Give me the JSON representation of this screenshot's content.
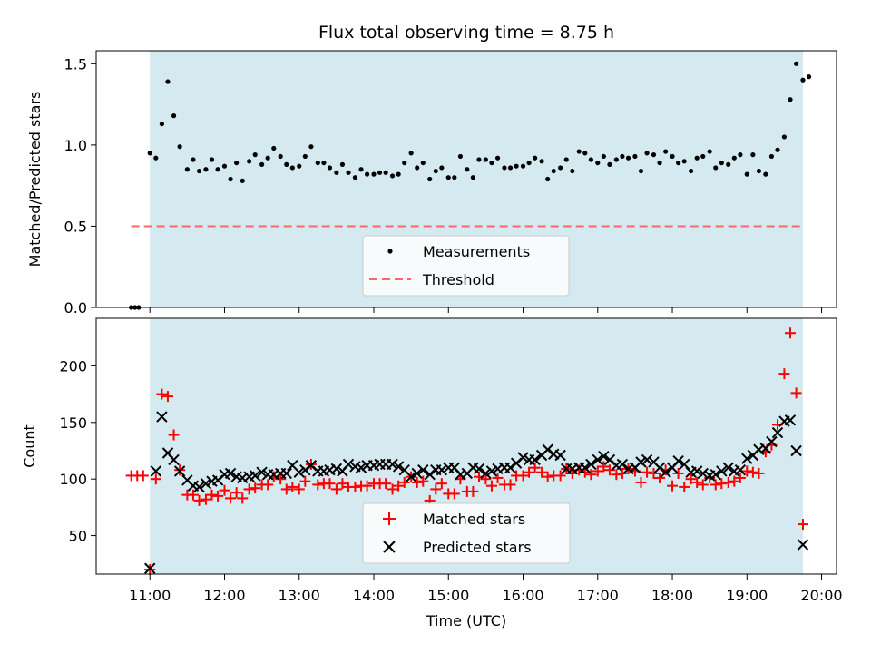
{
  "title": "Flux total observing time = 8.75 h",
  "top": {
    "ylabel": "Matched/Predicted stars",
    "ylim": [
      0,
      1.58
    ],
    "yticks": [
      0.0,
      0.5,
      1.0,
      1.5
    ],
    "ytick_labels": [
      "0.0",
      "0.5",
      "1.0",
      "1.5"
    ],
    "threshold": 0.5,
    "threshold_range": [
      10.75,
      19.75
    ],
    "legend": {
      "measurements": "Measurements",
      "threshold": "Threshold"
    },
    "measurements": [
      [
        10.75,
        0
      ],
      [
        10.8,
        0
      ],
      [
        10.85,
        0
      ],
      [
        11,
        0.95
      ],
      [
        11.08,
        0.92
      ],
      [
        11.16,
        1.13
      ],
      [
        11.24,
        1.39
      ],
      [
        11.32,
        1.18
      ],
      [
        11.4,
        0.99
      ],
      [
        11.5,
        0.85
      ],
      [
        11.58,
        0.91
      ],
      [
        11.66,
        0.84
      ],
      [
        11.75,
        0.85
      ],
      [
        11.83,
        0.91
      ],
      [
        11.91,
        0.85
      ],
      [
        12,
        0.87
      ],
      [
        12.08,
        0.79
      ],
      [
        12.16,
        0.89
      ],
      [
        12.24,
        0.78
      ],
      [
        12.33,
        0.9
      ],
      [
        12.41,
        0.94
      ],
      [
        12.5,
        0.88
      ],
      [
        12.58,
        0.92
      ],
      [
        12.66,
        0.98
      ],
      [
        12.75,
        0.93
      ],
      [
        12.83,
        0.88
      ],
      [
        12.91,
        0.86
      ],
      [
        13,
        0.87
      ],
      [
        13.08,
        0.93
      ],
      [
        13.16,
        0.99
      ],
      [
        13.25,
        0.89
      ],
      [
        13.33,
        0.89
      ],
      [
        13.41,
        0.86
      ],
      [
        13.5,
        0.83
      ],
      [
        13.58,
        0.88
      ],
      [
        13.66,
        0.83
      ],
      [
        13.75,
        0.8
      ],
      [
        13.83,
        0.85
      ],
      [
        13.91,
        0.82
      ],
      [
        14,
        0.82
      ],
      [
        14.08,
        0.83
      ],
      [
        14.16,
        0.83
      ],
      [
        14.25,
        0.81
      ],
      [
        14.33,
        0.82
      ],
      [
        14.41,
        0.89
      ],
      [
        14.5,
        0.95
      ],
      [
        14.58,
        0.86
      ],
      [
        14.66,
        0.89
      ],
      [
        14.75,
        0.79
      ],
      [
        14.83,
        0.84
      ],
      [
        14.91,
        0.86
      ],
      [
        15,
        0.8
      ],
      [
        15.08,
        0.8
      ],
      [
        15.16,
        0.93
      ],
      [
        15.25,
        0.85
      ],
      [
        15.33,
        0.8
      ],
      [
        15.41,
        0.91
      ],
      [
        15.5,
        0.91
      ],
      [
        15.58,
        0.89
      ],
      [
        15.66,
        0.92
      ],
      [
        15.75,
        0.86
      ],
      [
        15.83,
        0.86
      ],
      [
        15.91,
        0.87
      ],
      [
        16,
        0.87
      ],
      [
        16.08,
        0.89
      ],
      [
        16.16,
        0.92
      ],
      [
        16.25,
        0.9
      ],
      [
        16.33,
        0.79
      ],
      [
        16.41,
        0.84
      ],
      [
        16.5,
        0.86
      ],
      [
        16.58,
        0.91
      ],
      [
        16.66,
        0.84
      ],
      [
        16.75,
        0.96
      ],
      [
        16.83,
        0.95
      ],
      [
        16.91,
        0.91
      ],
      [
        17,
        0.89
      ],
      [
        17.08,
        0.93
      ],
      [
        17.16,
        0.88
      ],
      [
        17.25,
        0.91
      ],
      [
        17.33,
        0.93
      ],
      [
        17.41,
        0.92
      ],
      [
        17.5,
        0.93
      ],
      [
        17.58,
        0.84
      ],
      [
        17.66,
        0.95
      ],
      [
        17.75,
        0.94
      ],
      [
        17.83,
        0.89
      ],
      [
        17.91,
        0.96
      ],
      [
        18,
        0.93
      ],
      [
        18.08,
        0.89
      ],
      [
        18.16,
        0.9
      ],
      [
        18.25,
        0.84
      ],
      [
        18.33,
        0.92
      ],
      [
        18.41,
        0.93
      ],
      [
        18.5,
        0.96
      ],
      [
        18.58,
        0.86
      ],
      [
        18.66,
        0.89
      ],
      [
        18.75,
        0.88
      ],
      [
        18.83,
        0.92
      ],
      [
        18.91,
        0.94
      ],
      [
        19,
        0.82
      ],
      [
        19.08,
        0.94
      ],
      [
        19.16,
        0.84
      ],
      [
        19.25,
        0.82
      ],
      [
        19.33,
        0.93
      ],
      [
        19.41,
        0.97
      ],
      [
        19.5,
        1.05
      ],
      [
        19.58,
        1.28
      ],
      [
        19.66,
        1.5
      ],
      [
        19.75,
        1.4
      ],
      [
        19.83,
        1.42
      ]
    ]
  },
  "shaded_region": {
    "start": 11.0,
    "end": 19.75,
    "color": "#d4eaf0"
  },
  "bottom": {
    "ylabel": "Count",
    "ylim": [
      16,
      242
    ],
    "yticks": [
      50,
      100,
      150,
      200
    ],
    "ytick_labels": [
      "50",
      "100",
      "150",
      "200"
    ],
    "legend": {
      "matched": "Matched stars",
      "predicted": "Predicted stars"
    },
    "matched": [
      [
        10.75,
        103
      ],
      [
        10.83,
        103
      ],
      [
        10.91,
        103
      ],
      [
        11,
        20
      ],
      [
        11.08,
        100
      ],
      [
        11.16,
        175
      ],
      [
        11.24,
        173
      ],
      [
        11.32,
        139
      ],
      [
        11.4,
        108
      ],
      [
        11.5,
        86
      ],
      [
        11.58,
        86
      ],
      [
        11.66,
        81
      ],
      [
        11.75,
        82
      ],
      [
        11.83,
        86
      ],
      [
        11.91,
        85
      ],
      [
        12,
        90
      ],
      [
        12.08,
        83
      ],
      [
        12.16,
        88
      ],
      [
        12.24,
        83
      ],
      [
        12.33,
        91
      ],
      [
        12.41,
        92
      ],
      [
        12.5,
        95
      ],
      [
        12.58,
        95
      ],
      [
        12.66,
        102
      ],
      [
        12.75,
        100
      ],
      [
        12.83,
        91
      ],
      [
        12.91,
        93
      ],
      [
        13,
        91
      ],
      [
        13.08,
        98
      ],
      [
        13.16,
        113
      ],
      [
        13.25,
        95
      ],
      [
        13.33,
        96
      ],
      [
        13.41,
        96
      ],
      [
        13.5,
        91
      ],
      [
        13.58,
        96
      ],
      [
        13.66,
        93
      ],
      [
        13.75,
        93
      ],
      [
        13.83,
        94
      ],
      [
        13.91,
        94
      ],
      [
        14,
        96
      ],
      [
        14.08,
        96
      ],
      [
        14.16,
        96
      ],
      [
        14.25,
        91
      ],
      [
        14.33,
        94
      ],
      [
        14.41,
        97
      ],
      [
        14.5,
        102
      ],
      [
        14.58,
        97
      ],
      [
        14.66,
        98
      ],
      [
        14.75,
        81
      ],
      [
        14.83,
        91
      ],
      [
        14.91,
        96
      ],
      [
        15,
        87
      ],
      [
        15.08,
        87
      ],
      [
        15.16,
        100
      ],
      [
        15.25,
        89
      ],
      [
        15.33,
        89
      ],
      [
        15.41,
        102
      ],
      [
        15.5,
        100
      ],
      [
        15.58,
        94
      ],
      [
        15.66,
        101
      ],
      [
        15.75,
        95
      ],
      [
        15.83,
        95
      ],
      [
        15.91,
        103
      ],
      [
        16,
        103
      ],
      [
        16.08,
        106
      ],
      [
        16.16,
        110
      ],
      [
        16.25,
        106
      ],
      [
        16.33,
        102
      ],
      [
        16.41,
        103
      ],
      [
        16.5,
        103
      ],
      [
        16.58,
        109
      ],
      [
        16.66,
        105
      ],
      [
        16.75,
        108
      ],
      [
        16.83,
        106
      ],
      [
        16.91,
        104
      ],
      [
        17,
        107
      ],
      [
        17.08,
        111
      ],
      [
        17.16,
        108
      ],
      [
        17.25,
        104
      ],
      [
        17.33,
        105
      ],
      [
        17.41,
        109
      ],
      [
        17.5,
        107
      ],
      [
        17.58,
        97
      ],
      [
        17.66,
        106
      ],
      [
        17.75,
        105
      ],
      [
        17.83,
        101
      ],
      [
        17.91,
        108
      ],
      [
        18,
        94
      ],
      [
        18.08,
        105
      ],
      [
        18.16,
        93
      ],
      [
        18.25,
        100
      ],
      [
        18.33,
        97
      ],
      [
        18.41,
        95
      ],
      [
        18.5,
        101
      ],
      [
        18.58,
        95
      ],
      [
        18.66,
        96
      ],
      [
        18.75,
        97
      ],
      [
        18.83,
        98
      ],
      [
        18.91,
        101
      ],
      [
        19,
        107
      ],
      [
        19.08,
        106
      ],
      [
        19.16,
        105
      ],
      [
        19.25,
        124
      ],
      [
        19.33,
        130
      ],
      [
        19.41,
        148
      ],
      [
        19.5,
        193
      ],
      [
        19.58,
        229
      ],
      [
        19.66,
        176
      ],
      [
        19.75,
        60
      ]
    ],
    "predicted": [
      [
        11,
        21
      ],
      [
        11.08,
        107
      ],
      [
        11.16,
        155
      ],
      [
        11.24,
        123
      ],
      [
        11.32,
        117
      ],
      [
        11.4,
        107
      ],
      [
        11.5,
        99
      ],
      [
        11.58,
        94
      ],
      [
        11.66,
        93
      ],
      [
        11.75,
        96
      ],
      [
        11.83,
        98
      ],
      [
        11.91,
        99
      ],
      [
        12,
        104
      ],
      [
        12.08,
        105
      ],
      [
        12.16,
        102
      ],
      [
        12.24,
        101
      ],
      [
        12.33,
        102
      ],
      [
        12.41,
        103
      ],
      [
        12.5,
        106
      ],
      [
        12.58,
        104
      ],
      [
        12.66,
        104
      ],
      [
        12.75,
        105
      ],
      [
        12.83,
        105
      ],
      [
        12.91,
        112
      ],
      [
        13,
        106
      ],
      [
        13.08,
        108
      ],
      [
        13.16,
        112
      ],
      [
        13.25,
        107
      ],
      [
        13.33,
        107
      ],
      [
        13.41,
        108
      ],
      [
        13.5,
        109
      ],
      [
        13.58,
        107
      ],
      [
        13.66,
        113
      ],
      [
        13.75,
        111
      ],
      [
        13.83,
        110
      ],
      [
        13.91,
        112
      ],
      [
        14,
        112
      ],
      [
        14.08,
        113
      ],
      [
        14.16,
        113
      ],
      [
        14.25,
        113
      ],
      [
        14.33,
        111
      ],
      [
        14.41,
        108
      ],
      [
        14.5,
        102
      ],
      [
        14.58,
        105
      ],
      [
        14.66,
        108
      ],
      [
        14.75,
        104
      ],
      [
        14.83,
        108
      ],
      [
        14.91,
        108
      ],
      [
        15,
        110
      ],
      [
        15.08,
        110
      ],
      [
        15.16,
        104
      ],
      [
        15.25,
        105
      ],
      [
        15.33,
        110
      ],
      [
        15.41,
        109
      ],
      [
        15.5,
        105
      ],
      [
        15.58,
        107
      ],
      [
        15.66,
        109
      ],
      [
        15.75,
        110
      ],
      [
        15.83,
        110
      ],
      [
        15.91,
        114
      ],
      [
        16,
        119
      ],
      [
        16.08,
        117
      ],
      [
        16.16,
        117
      ],
      [
        16.25,
        121
      ],
      [
        16.33,
        126
      ],
      [
        16.41,
        122
      ],
      [
        16.5,
        121
      ],
      [
        16.58,
        109
      ],
      [
        16.66,
        109
      ],
      [
        16.75,
        110
      ],
      [
        16.83,
        110
      ],
      [
        16.91,
        113
      ],
      [
        17,
        117
      ],
      [
        17.08,
        120
      ],
      [
        17.16,
        117
      ],
      [
        17.25,
        112
      ],
      [
        17.33,
        113
      ],
      [
        17.41,
        109
      ],
      [
        17.5,
        110
      ],
      [
        17.58,
        115
      ],
      [
        17.66,
        117
      ],
      [
        17.75,
        115
      ],
      [
        17.83,
        110
      ],
      [
        17.91,
        106
      ],
      [
        18,
        110
      ],
      [
        18.08,
        116
      ],
      [
        18.16,
        113
      ],
      [
        18.25,
        106
      ],
      [
        18.33,
        107
      ],
      [
        18.41,
        105
      ],
      [
        18.5,
        103
      ],
      [
        18.58,
        104
      ],
      [
        18.66,
        107
      ],
      [
        18.75,
        110
      ],
      [
        18.83,
        107
      ],
      [
        18.91,
        108
      ],
      [
        19,
        118
      ],
      [
        19.08,
        121
      ],
      [
        19.16,
        126
      ],
      [
        19.25,
        127
      ],
      [
        19.33,
        133
      ],
      [
        19.41,
        141
      ],
      [
        19.5,
        151
      ],
      [
        19.58,
        152
      ],
      [
        19.66,
        125
      ],
      [
        19.75,
        42
      ]
    ]
  },
  "xaxis": {
    "label": "Time (UTC)",
    "xlim": [
      10.28,
      20.2
    ],
    "ticks": [
      11,
      12,
      13,
      14,
      15,
      16,
      17,
      18,
      19,
      20
    ],
    "tick_labels": [
      "11:00",
      "12:00",
      "13:00",
      "14:00",
      "15:00",
      "16:00",
      "17:00",
      "18:00",
      "19:00",
      "20:00"
    ]
  },
  "chart_data": [
    {
      "type": "scatter",
      "title": "Flux total observing time = 8.75 h",
      "xlabel": "",
      "ylabel": "Matched/Predicted stars",
      "ylim": [
        0,
        1.58
      ],
      "legend_position": "lower-center",
      "series": [
        {
          "name": "Measurements",
          "ref": "top.measurements",
          "color": "#000000"
        },
        {
          "name": "Threshold",
          "type": "line",
          "style": "dashed",
          "color": "#ff6666",
          "y": 0.5
        }
      ],
      "shaded_x_range": [
        11.0,
        19.75
      ]
    },
    {
      "type": "scatter",
      "xlabel": "Time (UTC)",
      "ylabel": "Count",
      "ylim": [
        16,
        242
      ],
      "legend_position": "lower-center",
      "series": [
        {
          "name": "Matched stars",
          "ref": "bottom.matched",
          "marker": "+",
          "color": "#ff0000"
        },
        {
          "name": "Predicted stars",
          "ref": "bottom.predicted",
          "marker": "x",
          "color": "#000000"
        }
      ],
      "shaded_x_range": [
        11.0,
        19.75
      ]
    }
  ]
}
